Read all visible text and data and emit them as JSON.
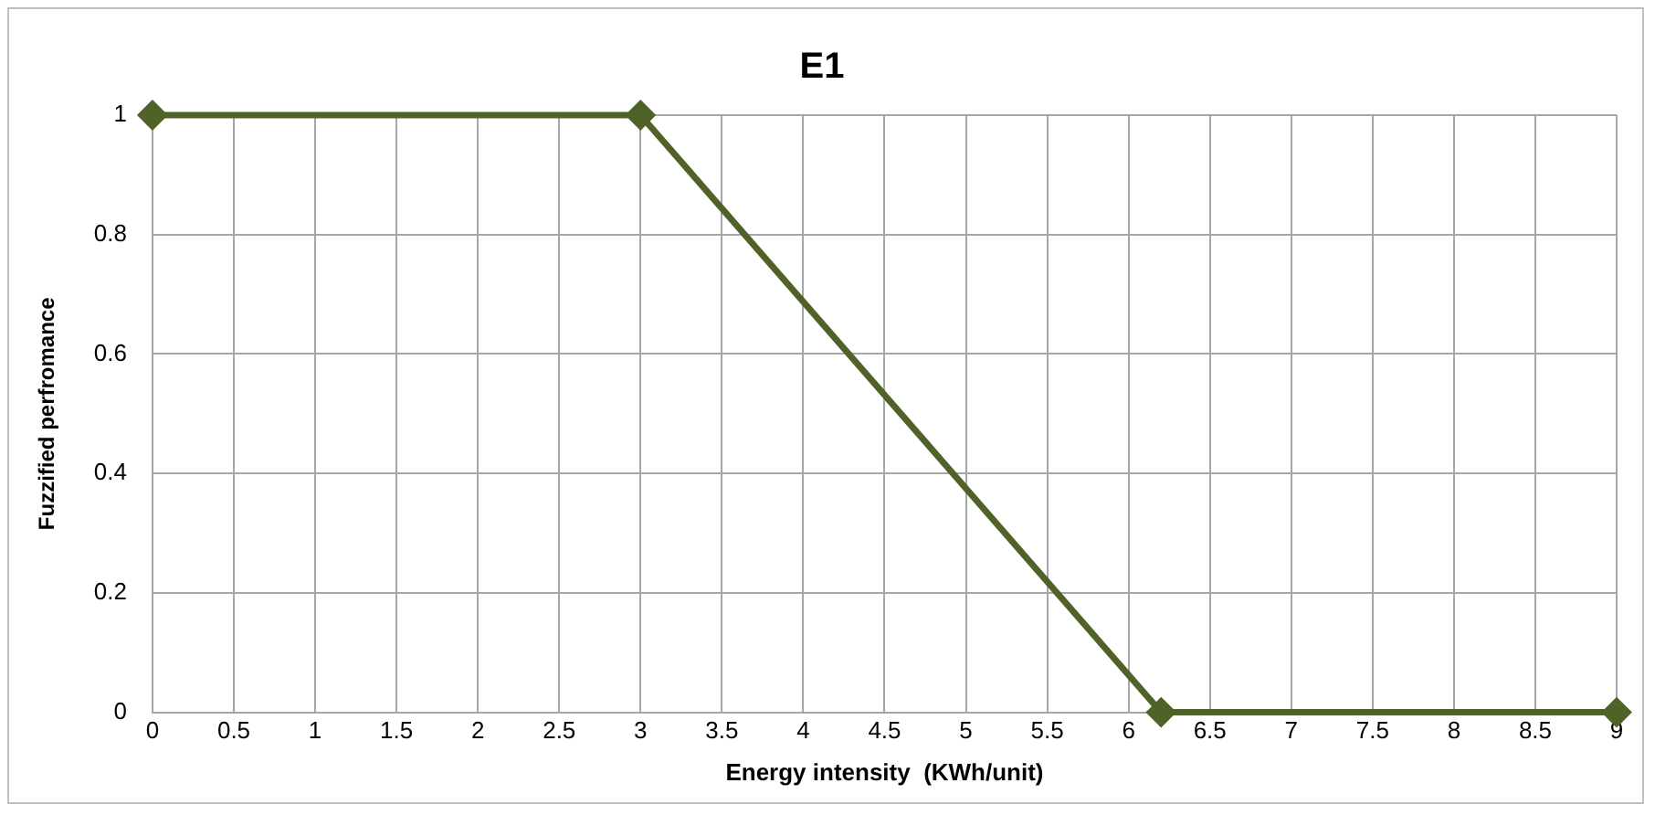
{
  "chart_data": {
    "type": "line",
    "title": "E1",
    "xlabel": "Energy intensity  (KWh/unit)",
    "ylabel": "Fuzzified perfromance",
    "x": [
      0,
      3,
      6.2,
      9
    ],
    "series": [
      {
        "color": "#4f6228",
        "values": [
          1,
          1,
          0,
          0
        ]
      }
    ],
    "xlim": [
      0,
      9
    ],
    "xticks": [
      0,
      0.5,
      1,
      1.5,
      2,
      2.5,
      3,
      3.5,
      4,
      4.5,
      5,
      5.5,
      6,
      6.5,
      7,
      7.5,
      8,
      8.5,
      9
    ],
    "ylim": [
      0,
      1
    ],
    "yticks": [
      0,
      0.2,
      0.4,
      0.6,
      0.8,
      1
    ],
    "grid": true,
    "marker": "diamond",
    "line_style": "solid",
    "legend": false
  }
}
